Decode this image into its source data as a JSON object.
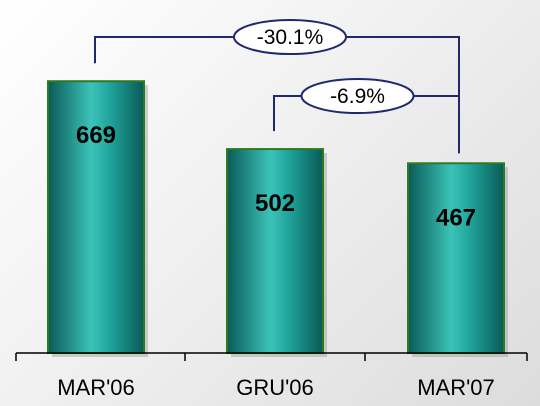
{
  "chart_data": {
    "type": "bar",
    "categories": [
      "MAR'06",
      "GRU'06",
      "MAR'07"
    ],
    "values": [
      669,
      502,
      467
    ],
    "title": "",
    "xlabel": "",
    "ylabel": "",
    "ylim": [
      0,
      800
    ],
    "grid": false,
    "legend": "none",
    "annotations": [
      {
        "text": "-30.1%",
        "from": "MAR'06",
        "to": "MAR'07"
      },
      {
        "text": "-6.9%",
        "from": "GRU'06",
        "to": "MAR'07"
      }
    ],
    "colors": {
      "bar_dark": "#0a5a56",
      "bar_mid": "#1fa39b",
      "bar_light": "#3cc3b8",
      "bar_outline": "#2e7a1e",
      "bracket": "#1f2a6e",
      "ellipse_fill": "#ffffff",
      "ellipse_stroke": "#1f2a6e"
    }
  }
}
